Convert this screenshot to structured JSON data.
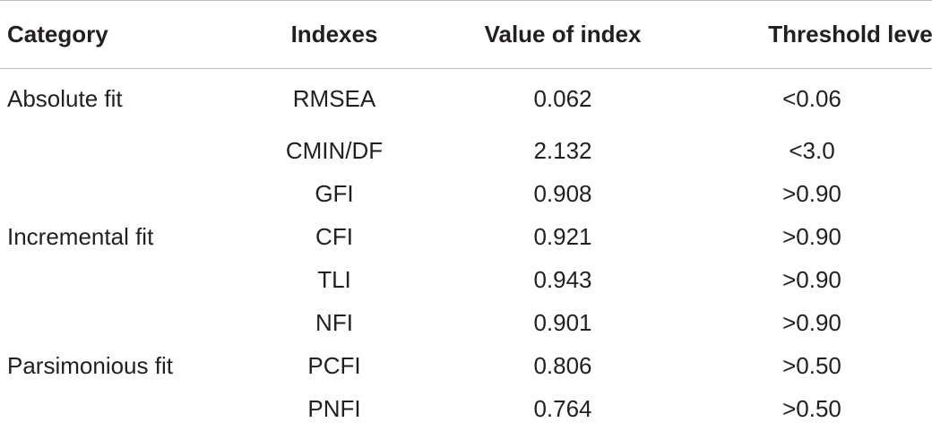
{
  "table": {
    "headers": {
      "category": "Category",
      "indexes": "Indexes",
      "value": "Value of index",
      "threshold": "Threshold level"
    },
    "rows": [
      {
        "category": "Absolute fit",
        "index": "RMSEA",
        "value": "0.062",
        "threshold": "<0.06"
      },
      {
        "category": "",
        "index": "CMIN/DF",
        "value": "2.132",
        "threshold": "<3.0"
      },
      {
        "category": "",
        "index": "GFI",
        "value": "0.908",
        "threshold": ">0.90"
      },
      {
        "category": "Incremental fit",
        "index": "CFI",
        "value": "0.921",
        "threshold": ">0.90"
      },
      {
        "category": "",
        "index": "TLI",
        "value": "0.943",
        "threshold": ">0.90"
      },
      {
        "category": "",
        "index": "NFI",
        "value": "0.901",
        "threshold": ">0.90"
      },
      {
        "category": "Parsimonious fit",
        "index": "PCFI",
        "value": "0.806",
        "threshold": ">0.50"
      },
      {
        "category": "",
        "index": "PNFI",
        "value": "0.764",
        "threshold": ">0.50"
      }
    ]
  }
}
